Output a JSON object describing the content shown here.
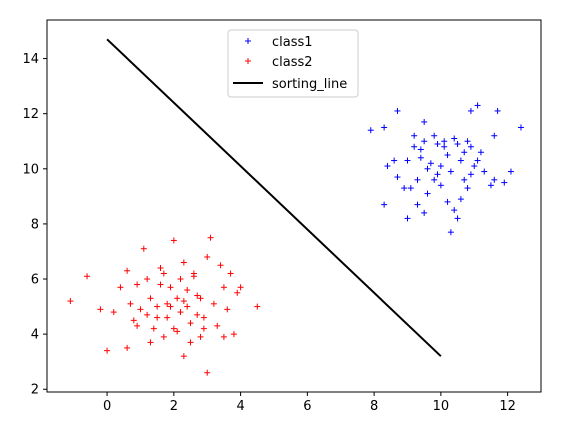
{
  "chart_data": {
    "type": "scatter",
    "title": "",
    "xlabel": "",
    "ylabel": "",
    "xlim": [
      -1.8,
      13.0
    ],
    "ylim": [
      1.9,
      15.4
    ],
    "xticks": [
      0,
      2,
      4,
      6,
      8,
      10,
      12
    ],
    "yticks": [
      2,
      4,
      6,
      8,
      10,
      12,
      14
    ],
    "grid": false,
    "legend_position": "top-center",
    "series": [
      {
        "name": "class1",
        "kind": "scatter",
        "marker": "+",
        "color": "#0000ff",
        "points": [
          [
            7.9,
            11.4
          ],
          [
            8.3,
            11.5
          ],
          [
            8.7,
            12.1
          ],
          [
            9.2,
            11.2
          ],
          [
            9.5,
            11.7
          ],
          [
            9.8,
            11.2
          ],
          [
            10.4,
            11.1
          ],
          [
            10.9,
            12.1
          ],
          [
            11.1,
            12.3
          ],
          [
            11.6,
            11.2
          ],
          [
            11.7,
            12.1
          ],
          [
            12.4,
            11.5
          ],
          [
            8.4,
            10.1
          ],
          [
            8.6,
            10.3
          ],
          [
            8.7,
            9.7
          ],
          [
            9.0,
            10.3
          ],
          [
            9.2,
            10.8
          ],
          [
            9.4,
            10.4
          ],
          [
            9.6,
            10.0
          ],
          [
            9.9,
            10.9
          ],
          [
            10.0,
            10.1
          ],
          [
            10.2,
            10.5
          ],
          [
            10.5,
            10.9
          ],
          [
            10.7,
            10.6
          ],
          [
            10.9,
            9.8
          ],
          [
            11.1,
            10.3
          ],
          [
            11.3,
            9.9
          ],
          [
            11.6,
            9.6
          ],
          [
            11.9,
            9.5
          ],
          [
            12.1,
            9.9
          ],
          [
            8.3,
            8.7
          ],
          [
            9.0,
            8.2
          ],
          [
            9.1,
            9.3
          ],
          [
            9.3,
            8.7
          ],
          [
            9.5,
            8.4
          ],
          [
            9.6,
            9.1
          ],
          [
            9.8,
            9.6
          ],
          [
            10.0,
            9.4
          ],
          [
            10.2,
            8.8
          ],
          [
            10.4,
            8.5
          ],
          [
            10.6,
            8.9
          ],
          [
            10.8,
            9.3
          ],
          [
            10.5,
            8.2
          ],
          [
            10.3,
            7.7
          ],
          [
            11.5,
            9.4
          ],
          [
            9.4,
            10.7
          ],
          [
            9.7,
            10.2
          ],
          [
            10.1,
            10.8
          ],
          [
            10.6,
            10.3
          ],
          [
            10.9,
            10.8
          ],
          [
            9.3,
            9.6
          ],
          [
            9.9,
            9.8
          ],
          [
            10.3,
            9.9
          ],
          [
            10.7,
            9.6
          ],
          [
            11.0,
            10.1
          ],
          [
            9.5,
            11.0
          ],
          [
            10.1,
            11.0
          ],
          [
            10.8,
            11.0
          ],
          [
            11.2,
            10.6
          ],
          [
            8.9,
            9.3
          ]
        ]
      },
      {
        "name": "class2",
        "kind": "scatter",
        "marker": "+",
        "color": "#ff0000",
        "points": [
          [
            -1.1,
            5.2
          ],
          [
            -0.6,
            6.1
          ],
          [
            -0.2,
            4.9
          ],
          [
            0.0,
            3.4
          ],
          [
            0.2,
            4.8
          ],
          [
            0.6,
            3.5
          ],
          [
            0.6,
            6.3
          ],
          [
            0.8,
            4.5
          ],
          [
            0.9,
            5.8
          ],
          [
            1.0,
            4.9
          ],
          [
            1.1,
            7.1
          ],
          [
            1.2,
            6.0
          ],
          [
            1.3,
            5.3
          ],
          [
            1.4,
            4.2
          ],
          [
            1.5,
            5.0
          ],
          [
            1.6,
            6.4
          ],
          [
            1.7,
            3.9
          ],
          [
            1.8,
            4.6
          ],
          [
            1.9,
            5.7
          ],
          [
            2.0,
            7.4
          ],
          [
            2.0,
            4.2
          ],
          [
            2.1,
            5.3
          ],
          [
            2.2,
            4.8
          ],
          [
            2.3,
            3.2
          ],
          [
            2.3,
            6.6
          ],
          [
            2.4,
            5.0
          ],
          [
            2.5,
            4.4
          ],
          [
            2.6,
            6.1
          ],
          [
            2.7,
            5.4
          ],
          [
            2.8,
            3.9
          ],
          [
            2.9,
            4.6
          ],
          [
            3.0,
            6.8
          ],
          [
            3.0,
            2.6
          ],
          [
            3.1,
            7.5
          ],
          [
            3.2,
            5.1
          ],
          [
            3.3,
            4.3
          ],
          [
            3.4,
            6.5
          ],
          [
            3.5,
            5.7
          ],
          [
            3.6,
            4.9
          ],
          [
            3.7,
            6.2
          ],
          [
            3.8,
            4.0
          ],
          [
            3.9,
            5.5
          ],
          [
            4.0,
            5.7
          ],
          [
            4.5,
            5.0
          ],
          [
            1.2,
            4.7
          ],
          [
            1.5,
            4.6
          ],
          [
            1.8,
            5.1
          ],
          [
            2.1,
            4.1
          ],
          [
            2.4,
            5.6
          ],
          [
            2.7,
            4.7
          ],
          [
            1.6,
            5.8
          ],
          [
            2.2,
            6.0
          ],
          [
            2.6,
            6.2
          ],
          [
            1.9,
            5.0
          ],
          [
            2.3,
            5.2
          ],
          [
            0.4,
            5.7
          ],
          [
            0.9,
            4.3
          ],
          [
            1.3,
            3.7
          ],
          [
            2.5,
            3.7
          ],
          [
            2.9,
            4.2
          ],
          [
            3.5,
            3.9
          ],
          [
            0.7,
            5.1
          ],
          [
            1.7,
            6.2
          ],
          [
            2.8,
            5.3
          ]
        ]
      },
      {
        "name": "sorting_line",
        "kind": "line",
        "color": "#000000",
        "points": [
          [
            0.0,
            14.7
          ],
          [
            10.0,
            3.2
          ]
        ]
      }
    ]
  }
}
